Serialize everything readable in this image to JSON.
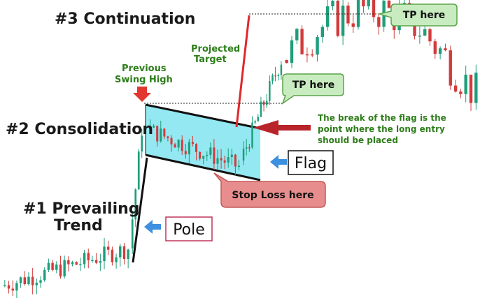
{
  "labels": {
    "title3": "#3 Continuation",
    "title2": "#2 Consolidation",
    "title1_line1": "#1 Prevailing",
    "title1_line2": "Trend",
    "prev_swing_line1": "Previous",
    "prev_swing_line2": "Swing High",
    "projected_line1": "Projected",
    "projected_line2": "Target",
    "tp_top": "TP here",
    "tp_mid": "TP here",
    "break_line1": "The break of the flag is the",
    "break_line2": "point where the long entry",
    "break_line3": "should be placed",
    "flag": "Flag",
    "pole": "Pole",
    "stop_loss": "Stop Loss here"
  },
  "colors": {
    "bull_candle": "#1e9e7a",
    "bear_candle": "#d23b3b",
    "flag_fill": "#6fe0ec",
    "callout_green_fill": "#c8ecc0",
    "callout_green_stroke": "#5aa34a",
    "callout_red_fill": "#e88d8d",
    "callout_red_stroke": "#c45858",
    "arrow_red": "#c8282c",
    "arrow_blue": "#3d8fe0",
    "pole_label_border": "#c0355a"
  },
  "chart_data": {
    "type": "candlestick",
    "description_note": "",
    "segments": [
      {
        "phase": "prevailing trend",
        "start_price": 0.5,
        "end_price": 0.62,
        "bars": 32
      },
      {
        "phase": "pole",
        "start_price": 0.62,
        "end_price": 1.0,
        "bars": 4
      },
      {
        "phase": "flag",
        "start_price": 1.0,
        "end_price": 0.88,
        "bars": 26
      },
      {
        "phase": "breakout",
        "start_price": 0.9,
        "end_price": 1.22,
        "bars": 14
      },
      {
        "phase": "continuation",
        "start_price": 1.22,
        "end_price": 1.36,
        "bars": 38
      }
    ]
  }
}
